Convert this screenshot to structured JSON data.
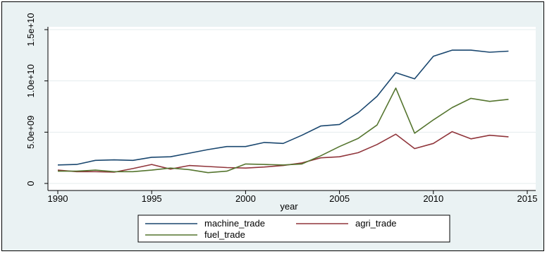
{
  "chart_data": {
    "type": "line",
    "title": "",
    "xlabel": "year",
    "ylabel": "",
    "xlim": [
      1990,
      2015
    ],
    "ylim": [
      0,
      15000000000
    ],
    "x_ticks": [
      1990,
      1995,
      2000,
      2005,
      2010,
      2015
    ],
    "x_tick_labels": [
      "1990",
      "1995",
      "2000",
      "2005",
      "2010",
      "2015"
    ],
    "y_ticks": [
      0,
      5000000000,
      10000000000,
      15000000000
    ],
    "y_tick_labels": [
      "0",
      "5.0e+09",
      "1.0e+10",
      "1.5e+10"
    ],
    "grid": true,
    "legend_position": "bottom",
    "x": [
      1990,
      1991,
      1992,
      1993,
      1994,
      1995,
      1996,
      1997,
      1998,
      1999,
      2000,
      2001,
      2002,
      2003,
      2004,
      2005,
      2006,
      2007,
      2008,
      2009,
      2010,
      2011,
      2012,
      2013,
      2014
    ],
    "series": [
      {
        "name": "machine_trade",
        "color": "#1a476f",
        "values": [
          1800000000,
          1850000000,
          2250000000,
          2300000000,
          2250000000,
          2550000000,
          2600000000,
          2950000000,
          3300000000,
          3600000000,
          3600000000,
          4000000000,
          3900000000,
          4700000000,
          5600000000,
          5750000000,
          6900000000,
          8500000000,
          10800000000,
          10200000000,
          12400000000,
          13000000000,
          13000000000,
          12800000000,
          12900000000
        ]
      },
      {
        "name": "agri_trade",
        "color": "#90353b",
        "values": [
          1300000000,
          1150000000,
          1150000000,
          1100000000,
          1450000000,
          1850000000,
          1400000000,
          1750000000,
          1650000000,
          1550000000,
          1500000000,
          1600000000,
          1750000000,
          2000000000,
          2500000000,
          2600000000,
          3000000000,
          3800000000,
          4800000000,
          3400000000,
          3900000000,
          5050000000,
          4350000000,
          4700000000,
          4550000000
        ]
      },
      {
        "name": "fuel_trade",
        "color": "#55752f",
        "values": [
          1200000000,
          1200000000,
          1300000000,
          1150000000,
          1150000000,
          1300000000,
          1500000000,
          1350000000,
          1050000000,
          1200000000,
          1900000000,
          1850000000,
          1800000000,
          1900000000,
          2700000000,
          3600000000,
          4400000000,
          5700000000,
          9300000000,
          4900000000,
          6200000000,
          7400000000,
          8300000000,
          8000000000,
          8200000000
        ]
      }
    ]
  }
}
